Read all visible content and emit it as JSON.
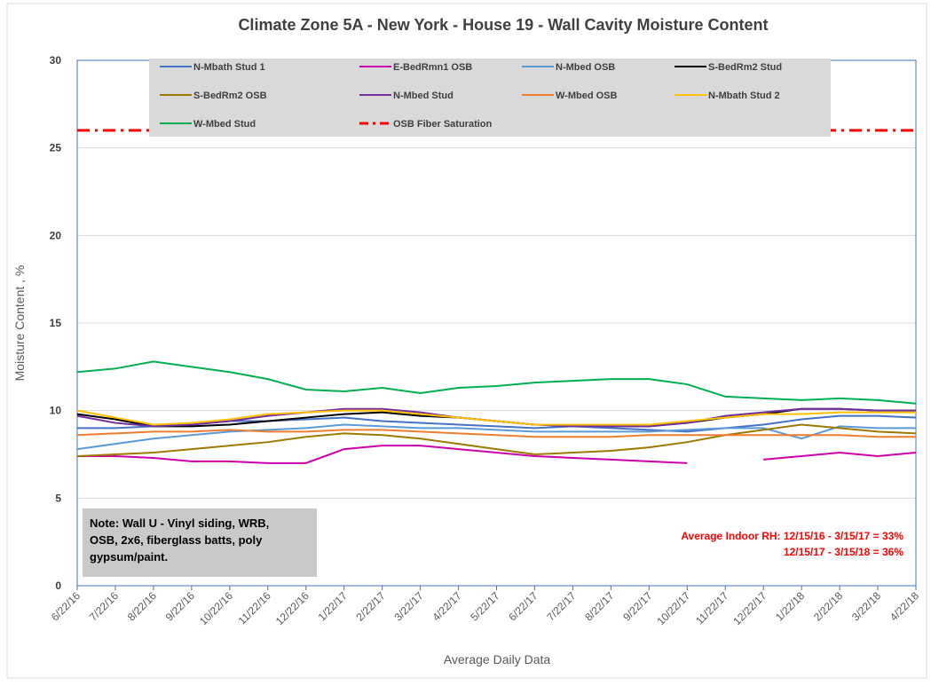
{
  "chart_data": {
    "type": "line",
    "title": "Climate Zone 5A - New York - House 19 - Wall Cavity Moisture Content",
    "y_label": "Moisture Content , %",
    "x_label": "Average Daily Data",
    "categories": [
      "6/22/16",
      "7/22/16",
      "8/22/16",
      "9/22/16",
      "10/22/16",
      "11/22/16",
      "12/22/16",
      "1/22/17",
      "2/22/17",
      "3/22/17",
      "4/22/17",
      "5/22/17",
      "6/22/17",
      "7/22/17",
      "8/22/17",
      "9/22/17",
      "10/22/17",
      "11/22/17",
      "12/22/17",
      "1/22/18",
      "2/22/18",
      "3/22/18",
      "4/22/18"
    ],
    "ylim": [
      0,
      30
    ],
    "yticks": [
      0,
      5,
      10,
      15,
      20,
      25,
      30
    ],
    "grid": true,
    "series": [
      {
        "name": "N-Mbath Stud 1",
        "color": "#4472c4",
        "values": [
          9.0,
          9.0,
          9.1,
          9.2,
          9.4,
          9.4,
          9.5,
          9.6,
          9.4,
          9.3,
          9.2,
          9.1,
          9.0,
          9.1,
          9.0,
          8.9,
          8.8,
          9.0,
          9.2,
          9.5,
          9.7,
          9.7,
          9.6
        ]
      },
      {
        "name": "E-BedRmn1 OSB",
        "color": "#cc00aa",
        "values": [
          7.4,
          7.4,
          7.3,
          7.1,
          7.1,
          7.0,
          7.0,
          7.8,
          8.0,
          8.0,
          7.8,
          7.6,
          7.4,
          7.3,
          7.2,
          7.1,
          7.0,
          null,
          7.2,
          7.4,
          7.6,
          7.4,
          7.6
        ]
      },
      {
        "name": "N-Mbed OSB",
        "color": "#5b9bd5",
        "values": [
          7.8,
          8.1,
          8.4,
          8.6,
          8.8,
          8.9,
          9.0,
          9.2,
          9.1,
          9.0,
          9.0,
          8.9,
          8.8,
          8.8,
          8.8,
          8.8,
          8.9,
          9.0,
          9.0,
          8.4,
          9.1,
          9.0,
          9.0
        ]
      },
      {
        "name": "S-BedRm2 Stud",
        "color": "#000000",
        "values": [
          9.8,
          9.5,
          9.1,
          9.1,
          9.2,
          9.4,
          9.6,
          9.8,
          9.9,
          9.7,
          9.6,
          9.4,
          9.2,
          9.2,
          9.1,
          9.1,
          9.3,
          9.6,
          9.8,
          10.1,
          10.1,
          10.0,
          10.0
        ]
      },
      {
        "name": "S-BedRm2 OSB",
        "color": "#9c7a00",
        "values": [
          7.4,
          7.5,
          7.6,
          7.8,
          8.0,
          8.2,
          8.5,
          8.7,
          8.6,
          8.4,
          8.1,
          7.8,
          7.5,
          7.6,
          7.7,
          7.9,
          8.2,
          8.6,
          8.9,
          9.2,
          9.0,
          8.8,
          8.7
        ]
      },
      {
        "name": "N-Mbed Stud",
        "color": "#7030a0",
        "values": [
          9.7,
          9.3,
          9.1,
          9.2,
          9.4,
          9.7,
          9.9,
          10.1,
          10.1,
          9.9,
          9.6,
          9.4,
          9.2,
          9.1,
          9.1,
          9.1,
          9.3,
          9.7,
          9.9,
          10.1,
          10.1,
          10.0,
          10.0
        ]
      },
      {
        "name": "W-Mbed OSB",
        "color": "#ed7d31",
        "values": [
          8.6,
          8.7,
          8.8,
          8.8,
          8.9,
          8.8,
          8.8,
          8.9,
          8.9,
          8.8,
          8.7,
          8.6,
          8.5,
          8.5,
          8.5,
          8.6,
          8.6,
          8.6,
          8.6,
          8.6,
          8.6,
          8.5,
          8.5
        ]
      },
      {
        "name": "N-Mbath Stud 2",
        "color": "#ffc000",
        "values": [
          10.0,
          9.6,
          9.2,
          9.3,
          9.5,
          9.8,
          9.9,
          10.0,
          10.0,
          9.8,
          9.6,
          9.4,
          9.2,
          9.2,
          9.2,
          9.2,
          9.4,
          9.6,
          9.8,
          9.8,
          9.9,
          9.9,
          9.9
        ]
      },
      {
        "name": "W-Mbed Stud",
        "color": "#00b050",
        "values": [
          12.2,
          12.4,
          12.8,
          12.5,
          12.2,
          11.8,
          11.2,
          11.1,
          11.3,
          11.0,
          11.3,
          11.4,
          11.6,
          11.7,
          11.8,
          11.8,
          11.5,
          10.8,
          10.7,
          10.6,
          10.7,
          10.6,
          10.4
        ]
      },
      {
        "name": "OSB Fiber Saturation",
        "color": "#ff0000",
        "style": "dash-dot",
        "values": [
          26,
          26,
          26,
          26,
          26,
          26,
          26,
          26,
          26,
          26,
          26,
          26,
          26,
          26,
          26,
          26,
          26,
          26,
          26,
          26,
          26,
          26,
          26
        ]
      }
    ],
    "note": [
      "Note: Wall U - Vinyl siding, WRB,",
      "OSB, 2x6, fiberglass batts, poly",
      "gypsum/paint."
    ],
    "annotations": [
      "Average Indoor RH: 12/15/16 - 3/15/17 = 33%",
      "12/15/17 - 3/15/18 = 36%"
    ]
  }
}
